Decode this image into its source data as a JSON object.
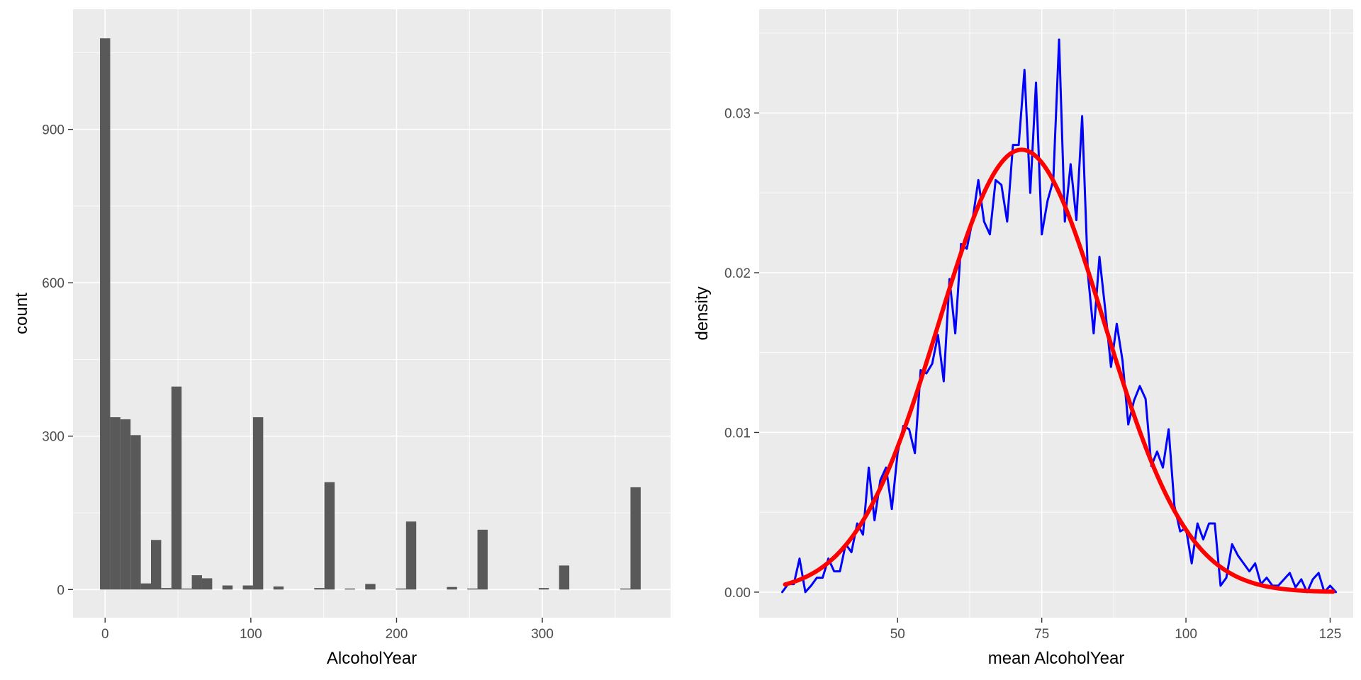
{
  "chart_data": [
    {
      "type": "bar",
      "subtype": "histogram",
      "xlabel": "AlcoholYear",
      "ylabel": "count",
      "xlim": [
        -22,
        388
      ],
      "ylim": [
        -55,
        1135
      ],
      "x_ticks": [
        0,
        100,
        200,
        300
      ],
      "y_ticks": [
        0,
        300,
        600,
        900
      ],
      "grid": true,
      "bar_color": "#595959",
      "background": "#ebebeb",
      "bins": [
        {
          "x0": -3.5,
          "x1": 3.5,
          "count": 1078
        },
        {
          "x0": 3.5,
          "x1": 10.5,
          "count": 337
        },
        {
          "x0": 10.5,
          "x1": 17.5,
          "count": 333
        },
        {
          "x0": 17.5,
          "x1": 24.5,
          "count": 302
        },
        {
          "x0": 24.5,
          "x1": 31.5,
          "count": 12
        },
        {
          "x0": 31.5,
          "x1": 38.5,
          "count": 97
        },
        {
          "x0": 38.5,
          "x1": 45.5,
          "count": 3
        },
        {
          "x0": 45.5,
          "x1": 52.5,
          "count": 397
        },
        {
          "x0": 52.5,
          "x1": 59.5,
          "count": 2
        },
        {
          "x0": 59.5,
          "x1": 66.5,
          "count": 28
        },
        {
          "x0": 66.5,
          "x1": 73.5,
          "count": 22
        },
        {
          "x0": 80.5,
          "x1": 87.5,
          "count": 8
        },
        {
          "x0": 94.5,
          "x1": 101.5,
          "count": 8
        },
        {
          "x0": 101.5,
          "x1": 108.5,
          "count": 337
        },
        {
          "x0": 115.5,
          "x1": 122.5,
          "count": 6
        },
        {
          "x0": 143.5,
          "x1": 150.5,
          "count": 3
        },
        {
          "x0": 150.5,
          "x1": 157.5,
          "count": 210
        },
        {
          "x0": 164.5,
          "x1": 171.5,
          "count": 2
        },
        {
          "x0": 178.5,
          "x1": 185.5,
          "count": 11
        },
        {
          "x0": 199.5,
          "x1": 206.5,
          "count": 2
        },
        {
          "x0": 206.5,
          "x1": 213.5,
          "count": 133
        },
        {
          "x0": 234.5,
          "x1": 241.5,
          "count": 5
        },
        {
          "x0": 248.5,
          "x1": 255.5,
          "count": 2
        },
        {
          "x0": 255.5,
          "x1": 262.5,
          "count": 117
        },
        {
          "x0": 297.5,
          "x1": 304.5,
          "count": 3
        },
        {
          "x0": 311.5,
          "x1": 318.5,
          "count": 47
        },
        {
          "x0": 353.5,
          "x1": 360.5,
          "count": 2
        },
        {
          "x0": 360.5,
          "x1": 367.5,
          "count": 200
        }
      ]
    },
    {
      "type": "line",
      "xlabel": "mean AlcoholYear",
      "ylabel": "density",
      "xlim": [
        26,
        129
      ],
      "ylim": [
        -0.0016,
        0.0365
      ],
      "x_ticks": [
        50,
        75,
        100,
        125
      ],
      "y_ticks": [
        0.0,
        0.01,
        0.02,
        0.03
      ],
      "y_tick_labels": [
        "0.00",
        "0.01",
        "0.02",
        "0.03"
      ],
      "grid": true,
      "background": "#ebebeb",
      "series": [
        {
          "color": "#0000ff",
          "style": "thin",
          "points": [
            [
              30,
              0.0
            ],
            [
              31,
              0.0005
            ],
            [
              32,
              0.0005
            ],
            [
              33,
              0.0021
            ],
            [
              34,
              0.0
            ],
            [
              35,
              0.0004
            ],
            [
              36,
              0.0009
            ],
            [
              37,
              0.0009
            ],
            [
              38,
              0.0021
            ],
            [
              39,
              0.0013
            ],
            [
              40,
              0.0013
            ],
            [
              41,
              0.003
            ],
            [
              42,
              0.0025
            ],
            [
              43,
              0.0043
            ],
            [
              44,
              0.0036
            ],
            [
              45,
              0.0078
            ],
            [
              46,
              0.0045
            ],
            [
              47,
              0.007
            ],
            [
              48,
              0.0078
            ],
            [
              49,
              0.0052
            ],
            [
              50,
              0.0087
            ],
            [
              51,
              0.0104
            ],
            [
              52,
              0.0102
            ],
            [
              53,
              0.0087
            ],
            [
              54,
              0.0139
            ],
            [
              55,
              0.0137
            ],
            [
              56,
              0.0143
            ],
            [
              57,
              0.0161
            ],
            [
              58,
              0.0132
            ],
            [
              59,
              0.0196
            ],
            [
              60,
              0.0162
            ],
            [
              61,
              0.0218
            ],
            [
              62,
              0.0215
            ],
            [
              63,
              0.0233
            ],
            [
              64,
              0.0258
            ],
            [
              65,
              0.0232
            ],
            [
              66,
              0.0224
            ],
            [
              67,
              0.0258
            ],
            [
              68,
              0.0255
            ],
            [
              69,
              0.0232
            ],
            [
              70,
              0.028
            ],
            [
              71,
              0.028
            ],
            [
              72,
              0.0327
            ],
            [
              73,
              0.025
            ],
            [
              74,
              0.0319
            ],
            [
              75,
              0.0224
            ],
            [
              76,
              0.0245
            ],
            [
              77,
              0.0258
            ],
            [
              78,
              0.0346
            ],
            [
              79,
              0.0232
            ],
            [
              80,
              0.0268
            ],
            [
              81,
              0.0233
            ],
            [
              82,
              0.0298
            ],
            [
              83,
              0.0199
            ],
            [
              84,
              0.0162
            ],
            [
              85,
              0.021
            ],
            [
              86,
              0.0177
            ],
            [
              87,
              0.0141
            ],
            [
              88,
              0.0168
            ],
            [
              89,
              0.0145
            ],
            [
              90,
              0.0105
            ],
            [
              91,
              0.012
            ],
            [
              92,
              0.0129
            ],
            [
              93,
              0.0121
            ],
            [
              94,
              0.0079
            ],
            [
              95,
              0.0088
            ],
            [
              96,
              0.0078
            ],
            [
              97,
              0.0102
            ],
            [
              98,
              0.0054
            ],
            [
              99,
              0.0038
            ],
            [
              100,
              0.004
            ],
            [
              101,
              0.0018
            ],
            [
              102,
              0.0043
            ],
            [
              103,
              0.0033
            ],
            [
              104,
              0.0043
            ],
            [
              105,
              0.0043
            ],
            [
              106,
              0.0004
            ],
            [
              107,
              0.0009
            ],
            [
              108,
              0.003
            ],
            [
              109,
              0.0023
            ],
            [
              110,
              0.0018
            ],
            [
              111,
              0.0013
            ],
            [
              112,
              0.0018
            ],
            [
              113,
              0.0005
            ],
            [
              114,
              0.0009
            ],
            [
              115,
              0.0004
            ],
            [
              116,
              0.0004
            ],
            [
              117,
              0.0008
            ],
            [
              118,
              0.0012
            ],
            [
              119,
              0.0003
            ],
            [
              120,
              0.0008
            ],
            [
              121,
              0.0
            ],
            [
              122,
              0.0008
            ],
            [
              123,
              0.0012
            ],
            [
              124,
              0.0
            ],
            [
              125,
              0.0004
            ],
            [
              126,
              0.0
            ]
          ]
        },
        {
          "color": "#ff0000",
          "style": "thick",
          "curve": "normal",
          "mean": 71.5,
          "sd": 14.4,
          "x_range": [
            30.5,
            125.5
          ]
        }
      ]
    }
  ]
}
